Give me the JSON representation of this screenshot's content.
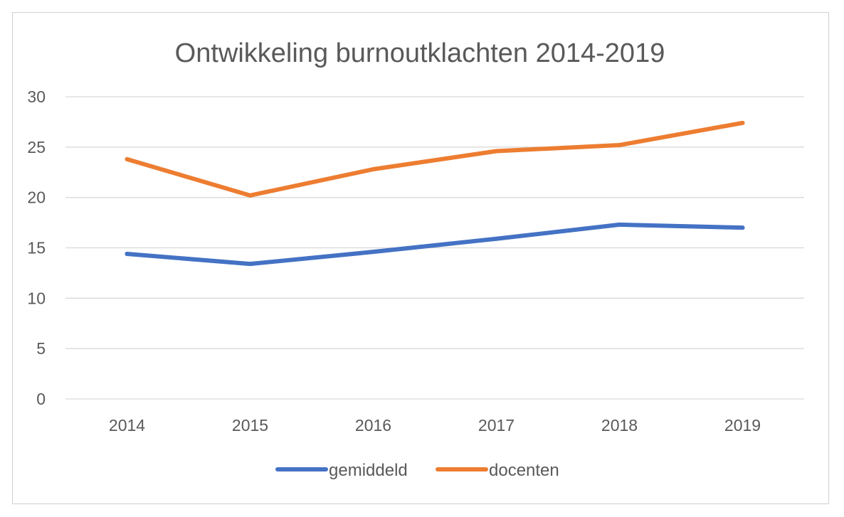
{
  "chart_data": {
    "type": "line",
    "title": "Ontwikkeling burnoutklachten 2014-2019",
    "xlabel": "",
    "ylabel": "",
    "categories": [
      "2014",
      "2015",
      "2016",
      "2017",
      "2018",
      "2019"
    ],
    "ylim": [
      0,
      30
    ],
    "yticks": [
      "0",
      "5",
      "10",
      "15",
      "20",
      "25",
      "30"
    ],
    "grid": true,
    "legend_position": "bottom",
    "series": [
      {
        "name": "gemiddeld",
        "color": "#4472c4",
        "values": [
          14.4,
          13.4,
          14.6,
          15.9,
          17.3,
          17.0
        ]
      },
      {
        "name": "docenten",
        "color": "#ed7d31",
        "values": [
          23.8,
          20.2,
          22.8,
          24.6,
          25.2,
          27.4
        ]
      }
    ]
  }
}
